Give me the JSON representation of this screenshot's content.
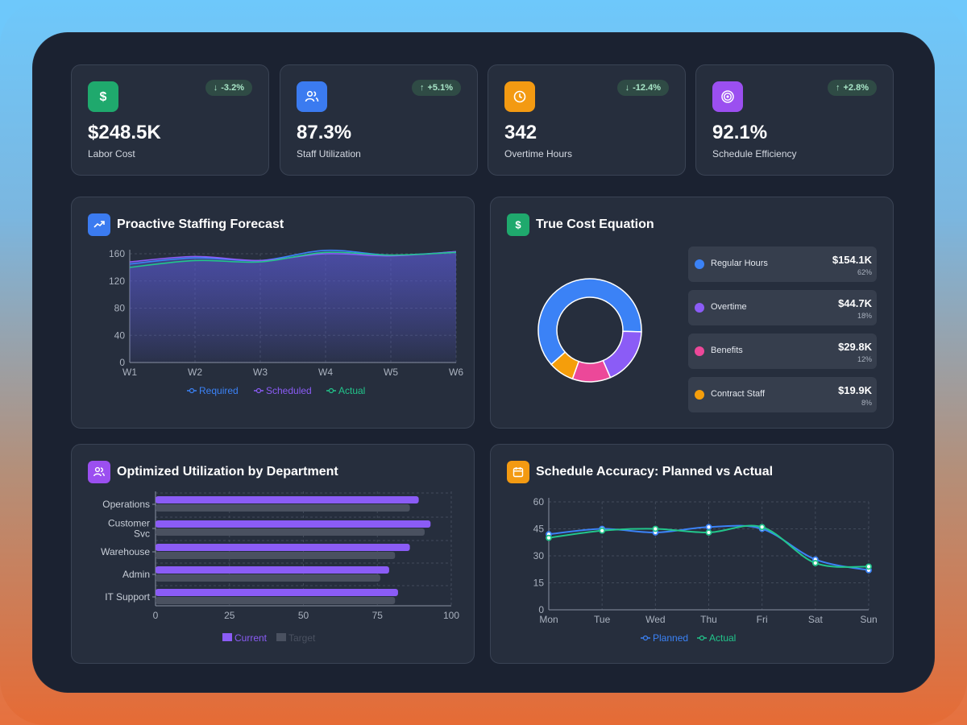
{
  "kpis": [
    {
      "icon": "dollar-icon",
      "color": "#1fa96d",
      "badge": "-3.2%",
      "trend": "down",
      "value": "$248.5K",
      "label": "Labor Cost"
    },
    {
      "icon": "users-icon",
      "color": "#3b7bf0",
      "badge": "+5.1%",
      "trend": "up",
      "value": "87.3%",
      "label": "Staff Utilization"
    },
    {
      "icon": "clock-icon",
      "color": "#f39a12",
      "badge": "-12.4%",
      "trend": "down",
      "value": "342",
      "label": "Overtime Hours"
    },
    {
      "icon": "target-icon",
      "color": "#9b4ff0",
      "badge": "+2.8%",
      "trend": "up",
      "value": "92.1%",
      "label": "Schedule Efficiency"
    }
  ],
  "forecast": {
    "title": "Proactive Staffing Forecast",
    "chart_data": {
      "type": "area",
      "categories": [
        "W1",
        "W2",
        "W3",
        "W4",
        "W5",
        "W6"
      ],
      "series": [
        {
          "name": "Required",
          "values": [
            145,
            154,
            150,
            165,
            158,
            163
          ],
          "color": "#3b82f6"
        },
        {
          "name": "Scheduled",
          "values": [
            148,
            156,
            150,
            160,
            157,
            163
          ],
          "color": "#8b5cf6"
        },
        {
          "name": "Actual",
          "values": [
            140,
            150,
            148,
            162,
            158,
            162
          ],
          "color": "#22c58b"
        }
      ],
      "ylim": [
        0,
        160
      ],
      "yticks": [
        "160",
        "120",
        "80",
        "40",
        "0"
      ],
      "legend": "bottom"
    }
  },
  "cost": {
    "title": "True Cost Equation",
    "chart_data": {
      "type": "pie",
      "labels": [
        "Regular Hours",
        "Overtime",
        "Benefits",
        "Contract Staff"
      ],
      "values": [
        62,
        18,
        12,
        8
      ],
      "amounts": [
        "$154.1K",
        "$44.7K",
        "$29.8K",
        "$19.9K"
      ],
      "percents": [
        "62%",
        "18%",
        "12%",
        "8%"
      ],
      "colors": [
        "#3b82f6",
        "#8b5cf6",
        "#ec4899",
        "#f59e0b"
      ]
    }
  },
  "utilization": {
    "title": "Optimized Utilization by Department",
    "chart_data": {
      "type": "bar",
      "categories": [
        [
          "Operations"
        ],
        [
          "Customer",
          "Svc"
        ],
        [
          "Warehouse"
        ],
        [
          "Admin"
        ],
        [
          "IT Support"
        ]
      ],
      "series": [
        {
          "name": "Current",
          "values": [
            89,
            93,
            86,
            79,
            82
          ],
          "color": "#8b5cf6"
        },
        {
          "name": "Target",
          "values": [
            86,
            91,
            81,
            76,
            81
          ],
          "color": "#4a5160"
        }
      ],
      "xlim": [
        0,
        100
      ],
      "xticks": [
        "0",
        "25",
        "50",
        "75",
        "100"
      ],
      "legend": "bottom"
    }
  },
  "accuracy": {
    "title": "Schedule Accuracy: Planned vs Actual",
    "chart_data": {
      "type": "line",
      "categories": [
        "Mon",
        "Tue",
        "Wed",
        "Thu",
        "Fri",
        "Sat",
        "Sun"
      ],
      "series": [
        {
          "name": "Planned",
          "values": [
            42,
            45,
            43,
            46,
            45,
            28,
            22
          ],
          "color": "#3b82f6"
        },
        {
          "name": "Actual",
          "values": [
            40,
            44,
            45,
            43,
            46,
            26,
            24
          ],
          "color": "#22c58b"
        }
      ],
      "ylim": [
        0,
        60
      ],
      "yticks": [
        "60",
        "45",
        "30",
        "15",
        "0"
      ],
      "legend": "bottom"
    }
  }
}
